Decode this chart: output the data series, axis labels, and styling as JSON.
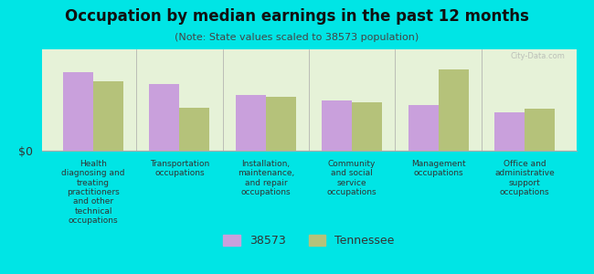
{
  "title": "Occupation by median earnings in the past 12 months",
  "subtitle": "(Note: State values scaled to 38573 population)",
  "background_color": "#00e5e5",
  "plot_bg_top": "#e8f5e8",
  "plot_bg_bottom": "#f0fff0",
  "categories": [
    "Health\ndiagnosing and\ntreating\npractitioners\nand other\ntechnical\noccupations",
    "Transportation\noccupations",
    "Installation,\nmaintenance,\nand repair\noccupations",
    "Community\nand social\nservice\noccupations",
    "Management\noccupations",
    "Office and\nadministrative\nsupport\noccupations"
  ],
  "values_38573": [
    85,
    72,
    60,
    55,
    50,
    42
  ],
  "values_tennessee": [
    75,
    47,
    58,
    53,
    88,
    46
  ],
  "color_38573": "#c9a0dc",
  "color_tennessee": "#b5c27a",
  "ylabel": "$0",
  "legend_label_1": "38573",
  "legend_label_2": "Tennessee",
  "watermark": "City-Data.com"
}
